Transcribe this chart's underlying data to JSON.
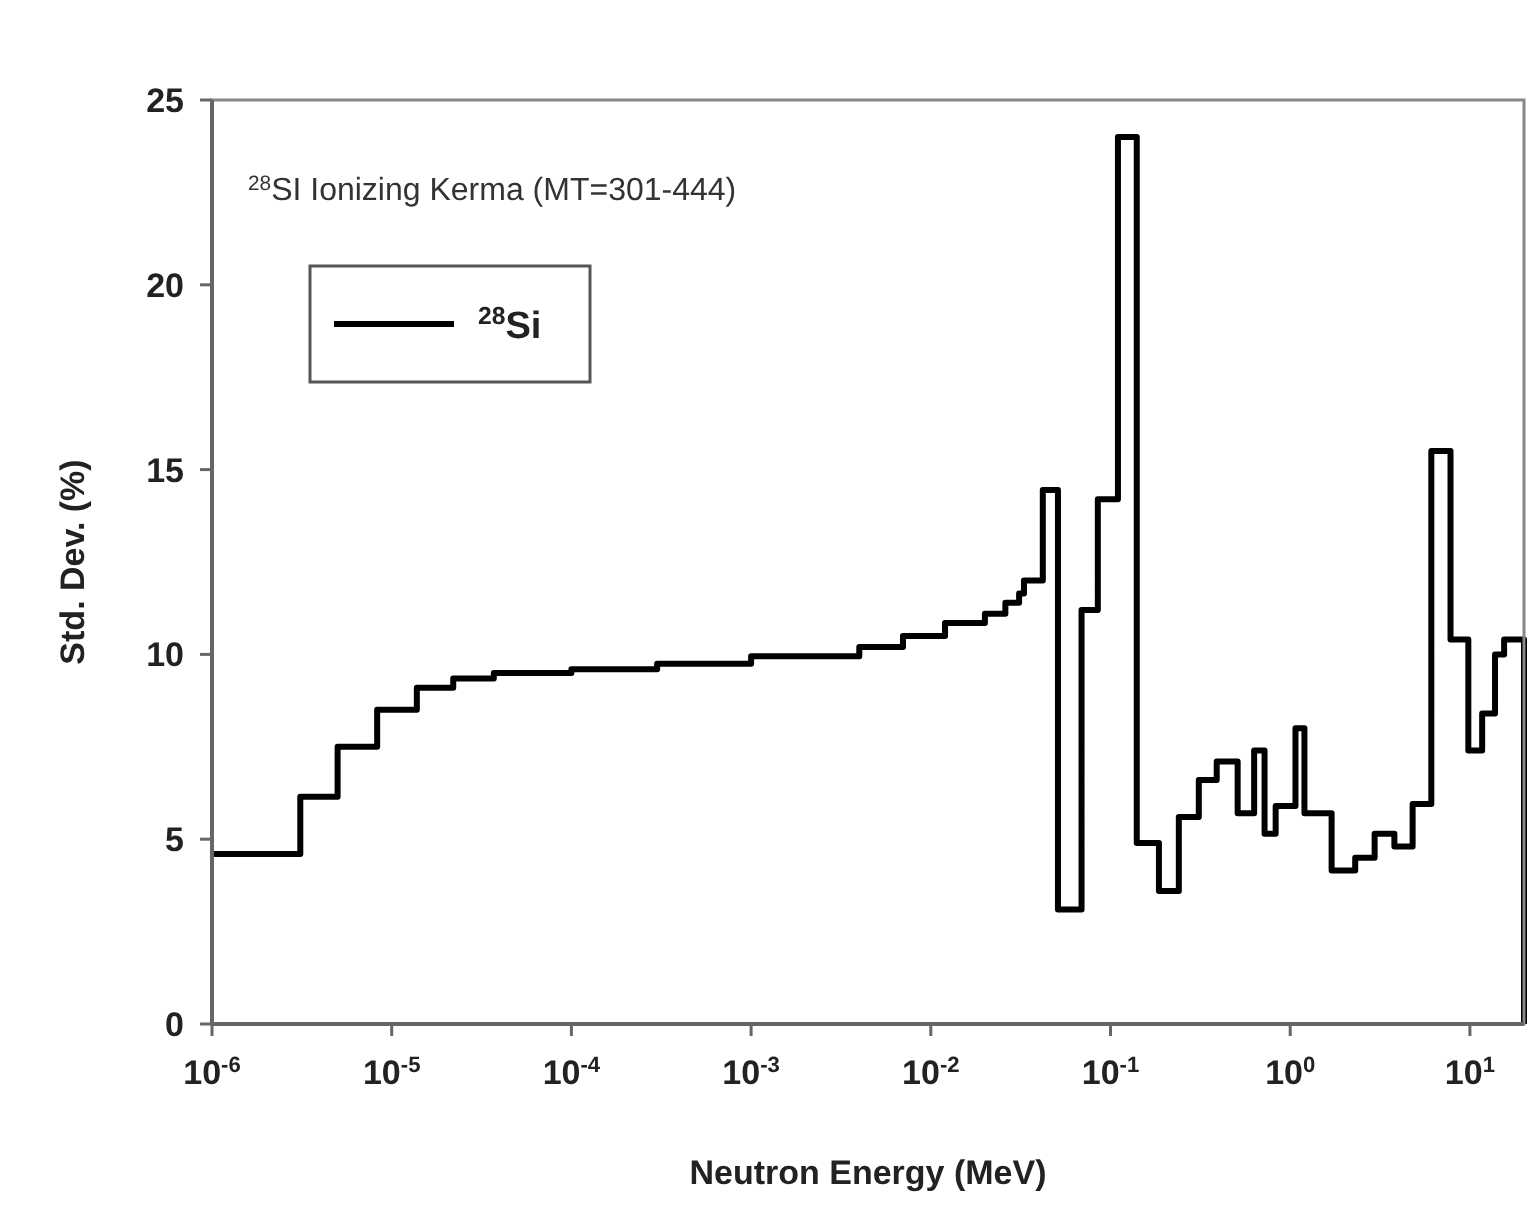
{
  "chart_data": {
    "type": "step",
    "xlabel": "Neutron Energy (MeV)",
    "ylabel": "Std. Dev. (%)",
    "annotations": [
      "$^{28}$SI Ionizing Kerma (MT=301-444)"
    ],
    "log": "x",
    "xlim": [
      1e-06,
      20
    ],
    "ylim": [
      0,
      25
    ],
    "xticks": [
      {
        "value": 1e-06,
        "label": "10$^{-6}$"
      },
      {
        "value": 1e-05,
        "label": "10$^{-5}$"
      },
      {
        "value": 0.0001,
        "label": "10$^{-4}$"
      },
      {
        "value": 0.001,
        "label": "10$^{-3}$"
      },
      {
        "value": 0.01,
        "label": "10$^{-2}$"
      },
      {
        "value": 0.1,
        "label": "10$^{-1}$"
      },
      {
        "value": 1,
        "label": "10$^{0}$"
      },
      {
        "value": 10,
        "label": "10$^{1}$"
      }
    ],
    "yticks": [
      0,
      5,
      10,
      15,
      20,
      25
    ],
    "grid": false,
    "legend": "top left",
    "line_style": "solid",
    "series": [
      {
        "name": "$^{28}$Si",
        "color": "#000000",
        "x": [
          1e-06,
          3.1e-06,
          5e-06,
          8.3e-06,
          1.38e-05,
          2.2e-05,
          3.7e-05,
          0.0001,
          0.0003,
          0.001,
          0.004,
          0.007,
          0.012,
          0.02,
          0.026,
          0.031,
          0.033,
          0.042,
          0.051,
          0.069,
          0.085,
          0.11,
          0.14,
          0.186,
          0.24,
          0.31,
          0.39,
          0.51,
          0.63,
          0.72,
          0.83,
          1.07,
          1.2,
          1.7,
          2.3,
          2.95,
          3.8,
          4.8,
          6.1,
          7.8,
          9.8,
          11.7,
          13.8,
          15.5,
          20
        ],
        "values": [
          4.6,
          6.15,
          7.5,
          8.5,
          9.1,
          9.35,
          9.5,
          9.6,
          9.75,
          9.95,
          10.2,
          10.5,
          10.85,
          11.1,
          11.4,
          11.65,
          12.0,
          14.45,
          3.1,
          11.2,
          14.2,
          24,
          4.9,
          3.6,
          5.6,
          6.6,
          7.1,
          5.7,
          7.4,
          5.15,
          5.9,
          8.0,
          5.7,
          4.15,
          4.5,
          5.15,
          4.8,
          5.95,
          15.5,
          10.4,
          7.4,
          8.4,
          10.0,
          10.4,
          0
        ]
      }
    ]
  }
}
